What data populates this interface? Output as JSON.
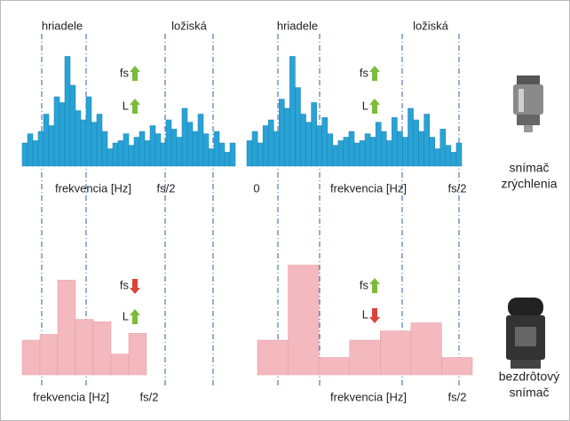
{
  "chart_data": [
    {
      "type": "bar",
      "color": "#29a3d6",
      "top_labels": [
        "hriadele",
        "ložiská"
      ],
      "x_labels": [
        "frekvencia [Hz]",
        "fs/2"
      ],
      "indicators": [
        {
          "label": "fs",
          "direction": "up"
        },
        {
          "label": "L",
          "direction": "up"
        }
      ],
      "values": [
        20,
        28,
        22,
        30,
        45,
        35,
        60,
        55,
        95,
        70,
        48,
        40,
        60,
        38,
        45,
        30,
        15,
        20,
        22,
        28,
        18,
        25,
        30,
        22,
        35,
        28,
        20,
        40,
        32,
        25,
        50,
        38,
        30,
        45,
        28,
        15,
        30,
        20,
        12,
        20
      ]
    },
    {
      "type": "bar",
      "color": "#29a3d6",
      "top_labels": [
        "hriadele",
        "ložiská"
      ],
      "x_labels": [
        "0",
        "frekvencia [Hz]",
        "fs/2"
      ],
      "indicators": [
        {
          "label": "fs",
          "direction": "up"
        },
        {
          "label": "L",
          "direction": "up"
        }
      ],
      "values": [
        22,
        30,
        20,
        35,
        40,
        30,
        58,
        50,
        95,
        68,
        45,
        38,
        55,
        35,
        42,
        28,
        18,
        22,
        25,
        30,
        20,
        22,
        28,
        25,
        38,
        30,
        22,
        42,
        30,
        25,
        50,
        40,
        30,
        45,
        25,
        15,
        32,
        18,
        12,
        20
      ]
    },
    {
      "type": "bar",
      "color": "#f4b8bf",
      "x_labels": [
        "frekvencia [Hz]",
        "fs/2"
      ],
      "indicators": [
        {
          "label": "fs",
          "direction": "down"
        },
        {
          "label": "L",
          "direction": "up"
        }
      ],
      "values": [
        30,
        35,
        82,
        48,
        46,
        18,
        36
      ]
    },
    {
      "type": "bar",
      "color": "#f4b8bf",
      "x_labels": [
        "frekvencia [Hz]",
        "fs/2"
      ],
      "indicators": [
        {
          "label": "fs",
          "direction": "up"
        },
        {
          "label": "L",
          "direction": "down"
        }
      ],
      "values": [
        30,
        95,
        15,
        30,
        38,
        45,
        15
      ]
    }
  ],
  "sensors": [
    {
      "lines": [
        "snímač",
        "zrýchlenia"
      ]
    },
    {
      "lines": [
        "bezdrôtový",
        "snímač"
      ]
    }
  ]
}
